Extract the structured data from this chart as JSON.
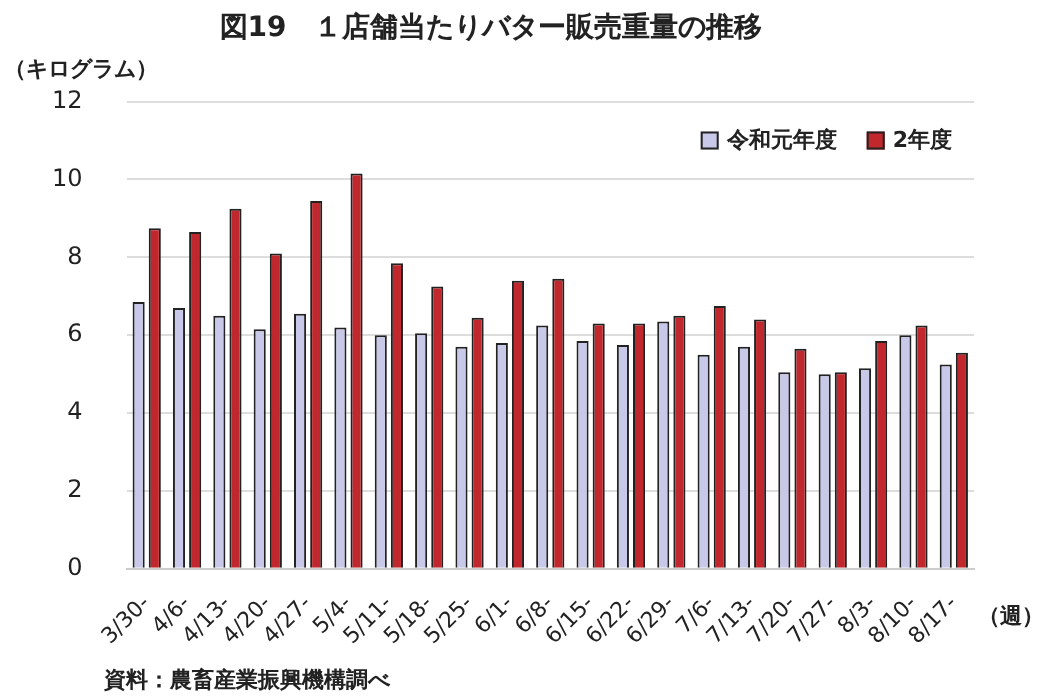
{
  "chart_data": {
    "type": "bar",
    "title": "図19　１店舗当たりバター販売重量の推移",
    "ylabel": "（キログラム）",
    "xlabel": "（週）",
    "categories": [
      "3/30-",
      "4/6-",
      "4/13-",
      "4/20-",
      "4/27-",
      "5/4-",
      "5/11-",
      "5/18-",
      "5/25-",
      "6/1-",
      "6/8-",
      "6/15-",
      "6/22-",
      "6/29-",
      "7/6-",
      "7/13-",
      "7/20-",
      "7/27-",
      "8/3-",
      "8/10-",
      "8/17-"
    ],
    "series": [
      {
        "name": "令和元年度",
        "color": "#c8c8e8",
        "values": [
          6.85,
          6.7,
          6.5,
          6.15,
          6.55,
          6.2,
          6.0,
          6.05,
          5.7,
          5.8,
          6.25,
          5.85,
          5.75,
          6.35,
          5.5,
          5.7,
          5.05,
          5.0,
          5.15,
          6.0,
          5.25
        ]
      },
      {
        "name": "2年度",
        "color": "#c0282d",
        "values": [
          8.75,
          8.65,
          9.25,
          8.1,
          9.45,
          10.15,
          7.85,
          7.25,
          6.45,
          7.4,
          7.45,
          6.3,
          6.3,
          6.5,
          6.75,
          6.4,
          5.65,
          5.05,
          5.85,
          6.25,
          5.55
        ]
      }
    ],
    "ylim": [
      0,
      12
    ],
    "yticks": [
      0,
      2,
      4,
      6,
      8,
      10,
      12
    ],
    "grid": "y",
    "legend": "top right",
    "annotations": [
      "資料：農畜産業振興機構調べ"
    ]
  }
}
